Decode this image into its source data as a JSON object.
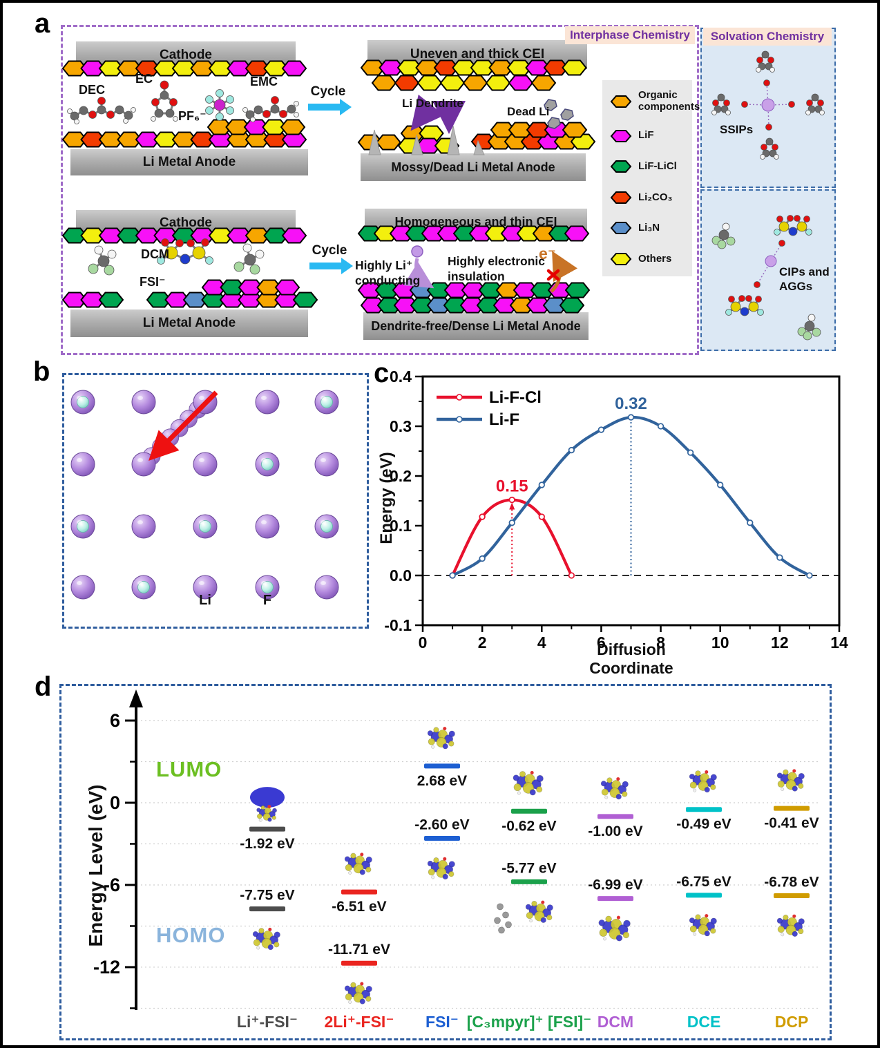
{
  "figure": {
    "panel_labels": {
      "a": "a",
      "b": "b",
      "c": "c",
      "d": "d"
    }
  },
  "panel_a": {
    "interphase_header": "Interphase Chemistry",
    "solvation_header": "Solvation Chemistry",
    "header_text_color": "#7030a0",
    "header_bg_color": "#fbe5d6",
    "conventional": {
      "cathode": "Cathode",
      "anode": "Li Metal Anode",
      "solvent_dec": "DEC",
      "solvent_ec": "EC",
      "solvent_pf6": "PF₆⁻",
      "solvent_emc": "EMC",
      "cycle": "Cycle",
      "cei": "Uneven and thick CEI",
      "li_dendrite": "Li Dendrite",
      "dead_li": "Dead Li",
      "cycled_anode": "Mossy/Dead Li Metal Anode"
    },
    "improved": {
      "cathode": "Cathode",
      "anode": "Li Metal Anode",
      "solvent_dcm": "DCM",
      "solvent_fsi": "FSI⁻",
      "cycle": "Cycle",
      "cei": "Homogeneous and thin CEI",
      "li_conducting_line1": "Highly Li⁺",
      "li_conducting_line2": "conducting",
      "insulation_line1": "Highly electronic",
      "insulation_line2": "insulation",
      "electron": "e⁻",
      "electron_color": "#c87326",
      "cycled_anode": "Dendrite-free/Dense Li Metal Anode"
    },
    "legend": [
      {
        "label": "Organic components",
        "color": "#f7a600"
      },
      {
        "label": "LiF",
        "color": "#f711f7"
      },
      {
        "label": "LiF-LiCl",
        "color": "#00a550"
      },
      {
        "label": "Li₂CO₃",
        "color": "#f33b00"
      },
      {
        "label": "Li₃N",
        "color": "#5b8fc9"
      },
      {
        "label": "Others",
        "color": "#f3ef0e"
      }
    ],
    "solvation": {
      "ssips": "SSIPs",
      "cips": "CIPs and AGGs"
    }
  },
  "panel_b": {
    "li_label": "Li",
    "f_label": "F",
    "atom_grid": [
      [
        "F",
        "Li",
        "Li",
        "Li",
        "F"
      ],
      [
        "Li",
        "Li",
        "Li",
        "F",
        "Li"
      ],
      [
        "F",
        "Li",
        "F",
        "Li",
        "F"
      ],
      [
        "Li",
        "F",
        "Li",
        "F",
        "Li"
      ]
    ],
    "arrow_color": "#ee1111"
  },
  "chart_data": [
    {
      "type": "line",
      "panel": "c",
      "title": "",
      "xlabel": "Diffusion Coordinate",
      "ylabel": "Energy (eV)",
      "xlim": [
        0,
        14
      ],
      "ylim": [
        -0.1,
        0.4
      ],
      "xticks": [
        0,
        2,
        4,
        6,
        8,
        10,
        12,
        14
      ],
      "yticks": [
        -0.1,
        0.0,
        0.1,
        0.2,
        0.3,
        0.4
      ],
      "grid": false,
      "legend_position": "top-left",
      "zero_dashed_line": true,
      "series": [
        {
          "name": "Li-F-Cl",
          "color": "#e8112d",
          "x": [
            1,
            2,
            3,
            4,
            5
          ],
          "y": [
            0.0,
            0.118,
            0.152,
            0.118,
            0.0
          ],
          "barrier_label": "0.15",
          "barrier_x": 3,
          "barrier_arrow": true
        },
        {
          "name": "Li-F",
          "color": "#31639c",
          "x": [
            1,
            2,
            3,
            4,
            5,
            6,
            7,
            8,
            9,
            10,
            11,
            12,
            13
          ],
          "y": [
            0.0,
            0.034,
            0.106,
            0.182,
            0.252,
            0.293,
            0.318,
            0.3,
            0.247,
            0.182,
            0.106,
            0.036,
            0.0
          ],
          "barrier_label": "0.32",
          "barrier_x": 7,
          "barrier_arrow": false
        }
      ]
    },
    {
      "type": "energy_levels",
      "panel": "d",
      "ylabel": "Energy Level (eV)",
      "unit": "eV",
      "lumo_label": "LUMO",
      "homo_label": "HOMO",
      "lumo_color": "#6cbf22",
      "homo_color": "#8ab4dc",
      "yticks_labeled": [
        6,
        0,
        -6,
        -12
      ],
      "yticks_minor": [
        3,
        -3,
        -9,
        -15
      ],
      "ylim": [
        -16,
        7.5
      ],
      "columns": [
        {
          "label": "Li⁺-FSI⁻",
          "color": "#4d4d4d",
          "lumo_ev": -1.92,
          "lumo_text": "-1.92 eV",
          "homo_ev": -7.75,
          "homo_text": "-7.75 eV"
        },
        {
          "label": "2Li⁺-FSI⁻",
          "color": "#ea2520",
          "lumo_ev": -6.51,
          "lumo_text": "-6.51 eV",
          "homo_ev": -11.71,
          "homo_text": "-11.71 eV"
        },
        {
          "label": "FSI⁻",
          "color": "#1d5fd2",
          "lumo_ev": 2.68,
          "lumo_text": "2.68 eV",
          "homo_ev": -2.6,
          "homo_text": "-2.60 eV"
        },
        {
          "label": "[C₃mpyr]⁺ [FSI]⁻",
          "color": "#1ba14b",
          "lumo_ev": -0.62,
          "lumo_text": "-0.62 eV",
          "homo_ev": -5.77,
          "homo_text": "-5.77 eV"
        },
        {
          "label": "DCM",
          "color": "#b05fd3",
          "lumo_ev": -1.0,
          "lumo_text": "-1.00 eV",
          "homo_ev": -6.99,
          "homo_text": "-6.99 eV"
        },
        {
          "label": "DCE",
          "color": "#00c2c8",
          "lumo_ev": -0.49,
          "lumo_text": "-0.49 eV",
          "homo_ev": -6.75,
          "homo_text": "-6.75 eV"
        },
        {
          "label": "DCP",
          "color": "#d09c00",
          "lumo_ev": -0.41,
          "lumo_text": "-0.41 eV",
          "homo_ev": -6.78,
          "homo_text": "-6.78 eV"
        }
      ]
    }
  ]
}
